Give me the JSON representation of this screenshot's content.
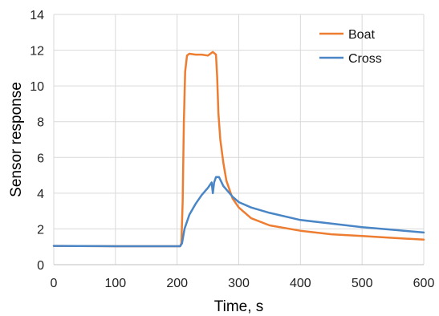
{
  "chart_data": {
    "type": "line",
    "title": "",
    "xlabel": "Time, s",
    "ylabel": "Sensor response",
    "xlim": [
      0,
      600
    ],
    "ylim": [
      0,
      14
    ],
    "xticks": [
      "0",
      "100",
      "200",
      "300",
      "400",
      "500",
      "600"
    ],
    "yticks": [
      "0",
      "2",
      "4",
      "6",
      "8",
      "10",
      "12",
      "14"
    ],
    "grid": true,
    "legend_position": "top-right",
    "series": [
      {
        "name": "Boat",
        "color": "#ED7D31",
        "points": [
          [
            0,
            1.05
          ],
          [
            100,
            1.03
          ],
          [
            205,
            1.03
          ],
          [
            207,
            1.2
          ],
          [
            209,
            3.5
          ],
          [
            211,
            8.0
          ],
          [
            213,
            10.8
          ],
          [
            216,
            11.7
          ],
          [
            220,
            11.8
          ],
          [
            230,
            11.75
          ],
          [
            240,
            11.75
          ],
          [
            250,
            11.7
          ],
          [
            258,
            11.9
          ],
          [
            263,
            11.75
          ],
          [
            265,
            10.5
          ],
          [
            267,
            8.5
          ],
          [
            270,
            7.0
          ],
          [
            275,
            5.7
          ],
          [
            280,
            4.7
          ],
          [
            290,
            3.7
          ],
          [
            300,
            3.2
          ],
          [
            320,
            2.6
          ],
          [
            350,
            2.2
          ],
          [
            400,
            1.9
          ],
          [
            450,
            1.7
          ],
          [
            500,
            1.6
          ],
          [
            550,
            1.5
          ],
          [
            600,
            1.4
          ]
        ]
      },
      {
        "name": "Cross",
        "color": "#4A86C6",
        "points": [
          [
            0,
            1.05
          ],
          [
            100,
            1.03
          ],
          [
            205,
            1.03
          ],
          [
            208,
            1.2
          ],
          [
            212,
            2.0
          ],
          [
            220,
            2.8
          ],
          [
            230,
            3.4
          ],
          [
            240,
            3.9
          ],
          [
            250,
            4.3
          ],
          [
            256,
            4.6
          ],
          [
            258,
            4.0
          ],
          [
            260,
            4.6
          ],
          [
            263,
            4.9
          ],
          [
            268,
            4.9
          ],
          [
            275,
            4.4
          ],
          [
            290,
            3.8
          ],
          [
            300,
            3.5
          ],
          [
            320,
            3.2
          ],
          [
            350,
            2.9
          ],
          [
            400,
            2.5
          ],
          [
            450,
            2.3
          ],
          [
            500,
            2.1
          ],
          [
            550,
            1.95
          ],
          [
            600,
            1.8
          ]
        ]
      }
    ]
  }
}
